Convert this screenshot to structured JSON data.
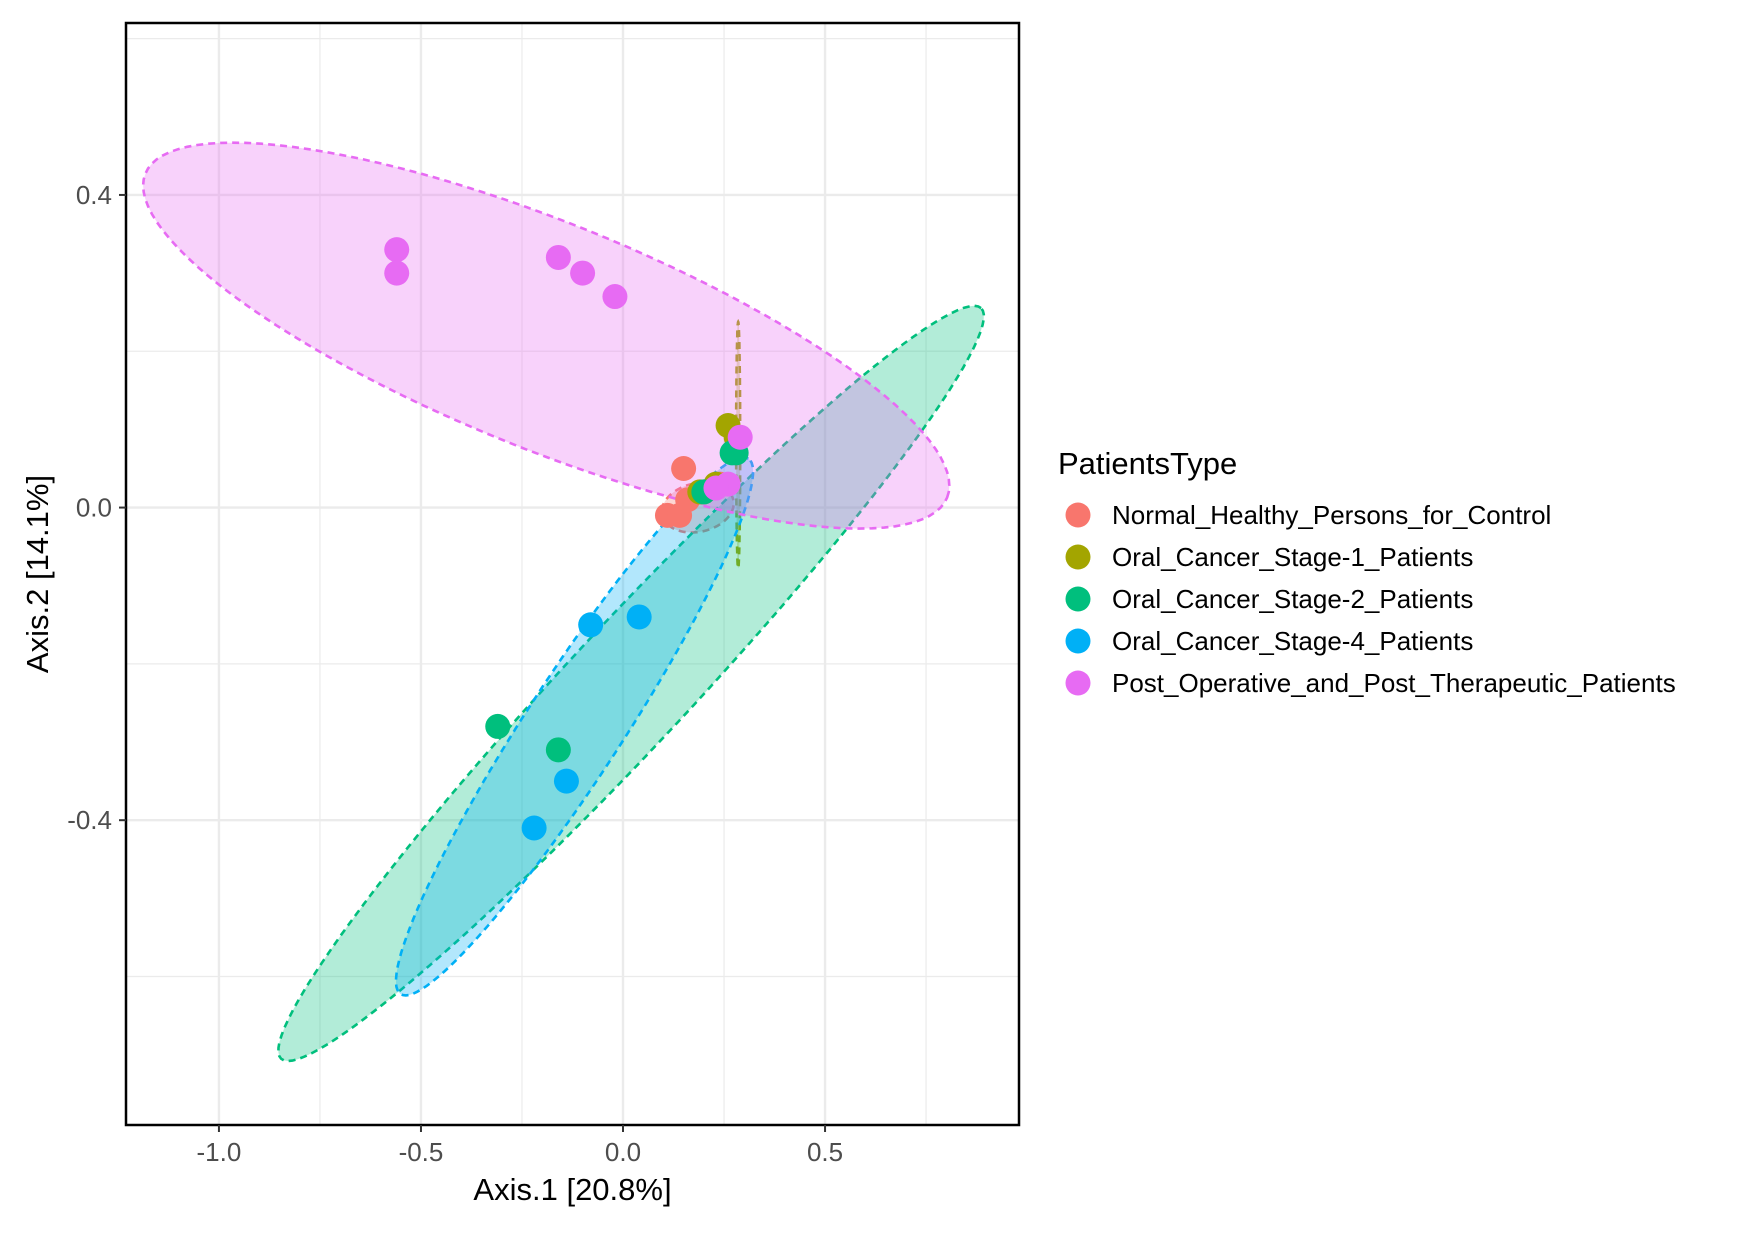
{
  "chart_data": {
    "type": "scatter",
    "title": "",
    "xlabel": "Axis.1   [20.8%]",
    "ylabel": "Axis.2   [14.1%]",
    "xlim": [
      -1.23,
      0.98
    ],
    "ylim": [
      -0.79,
      0.62
    ],
    "x_ticks": [
      -1.0,
      -0.5,
      0.0,
      0.5
    ],
    "x_tick_labels": [
      "-1.0",
      "-0.5",
      "0.0",
      "0.5"
    ],
    "y_ticks": [
      -0.4,
      0.0,
      0.4
    ],
    "y_tick_labels": [
      "-0.4",
      "0.0",
      "0.4"
    ],
    "grid": true,
    "legend_placement": "right",
    "legend_title": "PatientsType",
    "ellipse_style": "dashed outline with translucent fill",
    "series": [
      {
        "name": "Normal_Healthy_Persons_for_Control",
        "color": "#F8766D",
        "points": [
          [
            0.15,
            0.05
          ],
          [
            0.11,
            -0.01
          ],
          [
            0.14,
            -0.01
          ],
          [
            0.16,
            0.01
          ],
          [
            0.2,
            0.02
          ],
          [
            0.24,
            0.03
          ]
        ],
        "ellipse": {
          "center": [
            0.185,
            0.0
          ],
          "semi_axes": [
            0.09,
            0.06
          ],
          "angle_deg": 12
        }
      },
      {
        "name": "Oral_Cancer_Stage-1_Patients",
        "color": "#A3A500",
        "points": [
          [
            0.26,
            0.105
          ],
          [
            0.28,
            0.09
          ],
          [
            0.19,
            0.02
          ],
          [
            0.23,
            0.03
          ]
        ],
        "ellipse": {
          "center": [
            0.285,
            0.08
          ],
          "semi_axes": [
            0.005,
            0.305
          ],
          "angle_deg": 0
        }
      },
      {
        "name": "Oral_Cancer_Stage-2_Patients",
        "color": "#00BF7D",
        "points": [
          [
            -0.31,
            -0.28
          ],
          [
            -0.16,
            -0.31
          ],
          [
            0.27,
            0.07
          ],
          [
            0.28,
            0.07
          ],
          [
            0.2,
            0.02
          ]
        ],
        "ellipse": {
          "center": [
            0.02,
            -0.225
          ],
          "semi_axes": [
            1.27,
            0.15
          ],
          "angle_deg": 47
        }
      },
      {
        "name": "Oral_Cancer_Stage-4_Patients",
        "color": "#00B0F6",
        "points": [
          [
            -0.08,
            -0.15
          ],
          [
            0.04,
            -0.14
          ],
          [
            -0.14,
            -0.35
          ],
          [
            -0.22,
            -0.41
          ]
        ],
        "ellipse": {
          "center": [
            -0.12,
            -0.28
          ],
          "semi_axes": [
            0.79,
            0.12
          ],
          "angle_deg": 57
        }
      },
      {
        "name": "Post_Operative_and_Post_Therapeutic_Patients",
        "color": "#E76BF3",
        "points": [
          [
            -0.56,
            0.33
          ],
          [
            -0.56,
            0.3
          ],
          [
            -0.16,
            0.32
          ],
          [
            -0.1,
            0.3
          ],
          [
            -0.02,
            0.27
          ],
          [
            0.29,
            0.09
          ],
          [
            0.26,
            0.03
          ],
          [
            0.23,
            0.025
          ]
        ],
        "ellipse": {
          "center": [
            -0.19,
            0.22
          ],
          "semi_axes": [
            1.07,
            0.28
          ],
          "angle_deg": -22
        }
      }
    ]
  }
}
